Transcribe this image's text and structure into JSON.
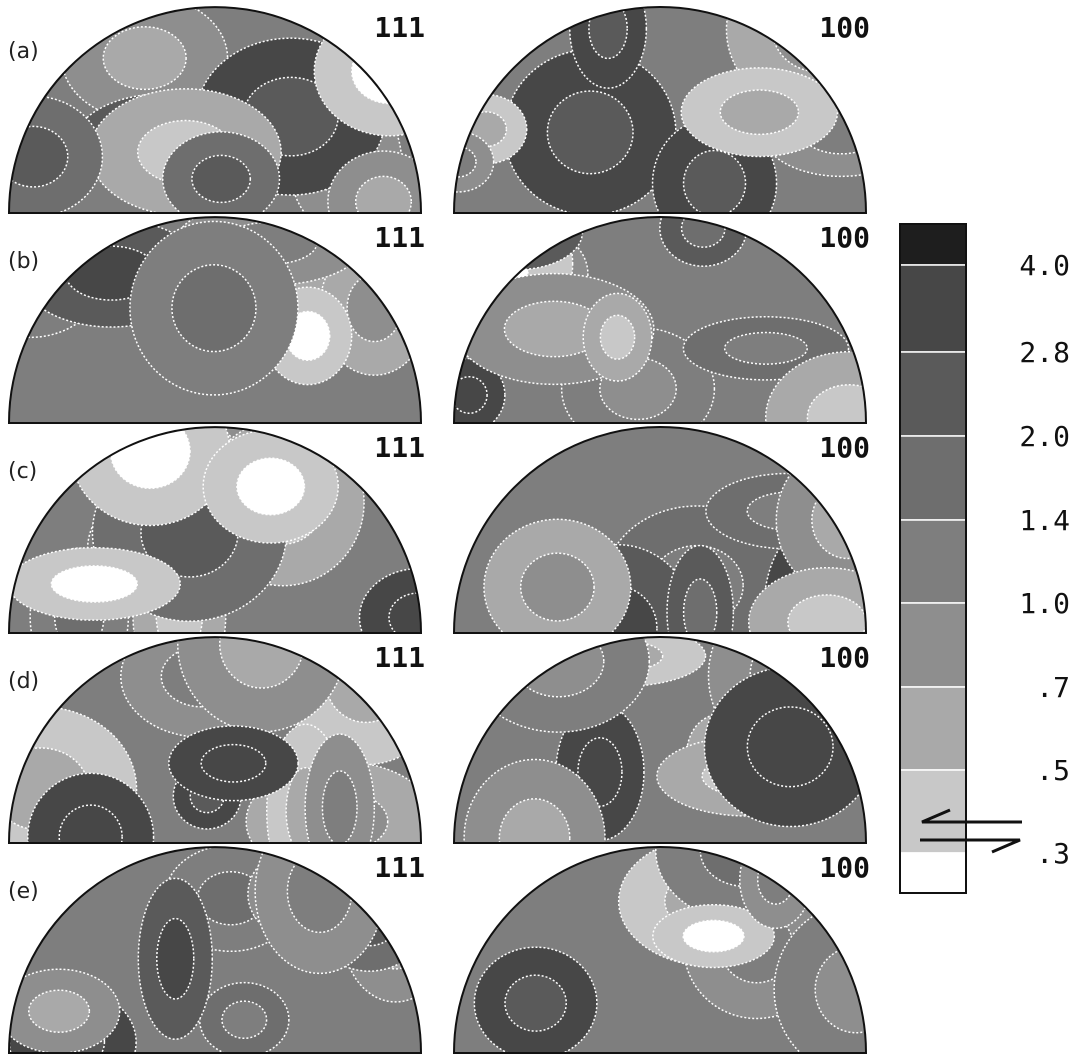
{
  "rows": [
    {
      "label": "(a)",
      "panels": [
        "111",
        "100"
      ]
    },
    {
      "label": "(b)",
      "panels": [
        "111",
        "100"
      ]
    },
    {
      "label": "(c)",
      "panels": [
        "111",
        "100"
      ]
    },
    {
      "label": "(d)",
      "panels": [
        "111",
        "100"
      ]
    },
    {
      "label": "(e)",
      "panels": [
        "111",
        "100"
      ]
    }
  ],
  "legend": {
    "labels": [
      "4.0",
      "2.8",
      "2.0",
      "1.4",
      "1.0",
      ".7",
      ".5",
      ".3"
    ],
    "shades": [
      "#1e1e1e",
      "#474747",
      "#5a5a5a",
      "#6e6e6e",
      "#7e7e7e",
      "#8e8e8e",
      "#a9a9a9",
      "#c8c8c8",
      "#ffffff"
    ]
  }
}
